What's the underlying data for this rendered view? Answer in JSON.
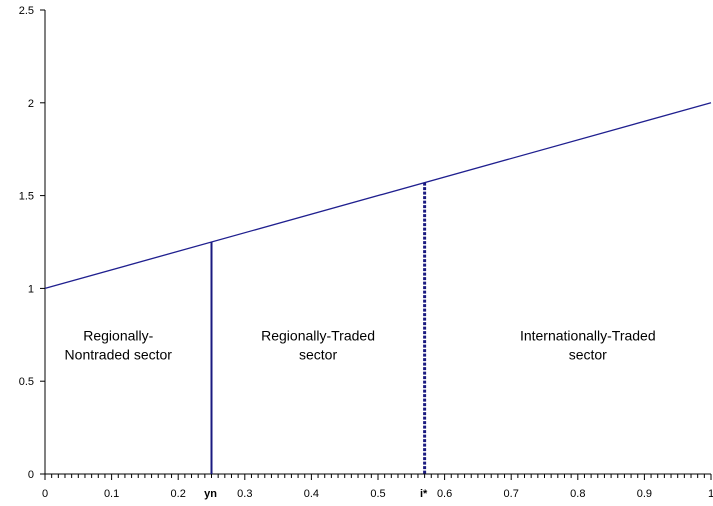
{
  "chart_data": {
    "type": "line",
    "title": "",
    "xlabel": "",
    "ylabel": "",
    "xlim": [
      0,
      1
    ],
    "ylim": [
      0,
      2.5
    ],
    "grid": false,
    "x_ticks": [
      {
        "value": 0,
        "label": "0"
      },
      {
        "value": 0.1,
        "label": "0.1"
      },
      {
        "value": 0.2,
        "label": "0.2"
      },
      {
        "value": 0.3,
        "label": "0.3"
      },
      {
        "value": 0.4,
        "label": "0.4"
      },
      {
        "value": 0.5,
        "label": "0.5"
      },
      {
        "value": 0.6,
        "label": "0.6"
      },
      {
        "value": 0.7,
        "label": "0.7"
      },
      {
        "value": 0.8,
        "label": "0.8"
      },
      {
        "value": 0.9,
        "label": "0.9"
      },
      {
        "value": 1,
        "label": "1"
      }
    ],
    "y_ticks": [
      {
        "value": 0,
        "label": "0"
      },
      {
        "value": 0.5,
        "label": "0.5"
      },
      {
        "value": 1,
        "label": "1"
      },
      {
        "value": 1.5,
        "label": "1.5"
      },
      {
        "value": 2,
        "label": "2"
      },
      {
        "value": 2.5,
        "label": "2.5"
      }
    ],
    "series": [
      {
        "x": [
          0,
          1
        ],
        "y": [
          1,
          2
        ],
        "color": "#1f1f8f"
      }
    ],
    "markers": [
      {
        "x": 0.25,
        "label": "yn",
        "style": "solid",
        "color": "#1a1a80"
      },
      {
        "x": 0.57,
        "label": "i*",
        "style": "dashed",
        "color": "#1a1a80"
      }
    ],
    "regions": [
      {
        "lines": [
          "Regionally-",
          "Nontraded sector"
        ],
        "x": 0.11,
        "y": 0.72
      },
      {
        "lines": [
          "Regionally-Traded",
          "sector"
        ],
        "x": 0.41,
        "y": 0.72
      },
      {
        "lines": [
          "Internationally-Traded",
          "sector"
        ],
        "x": 0.815,
        "y": 0.72
      }
    ]
  }
}
